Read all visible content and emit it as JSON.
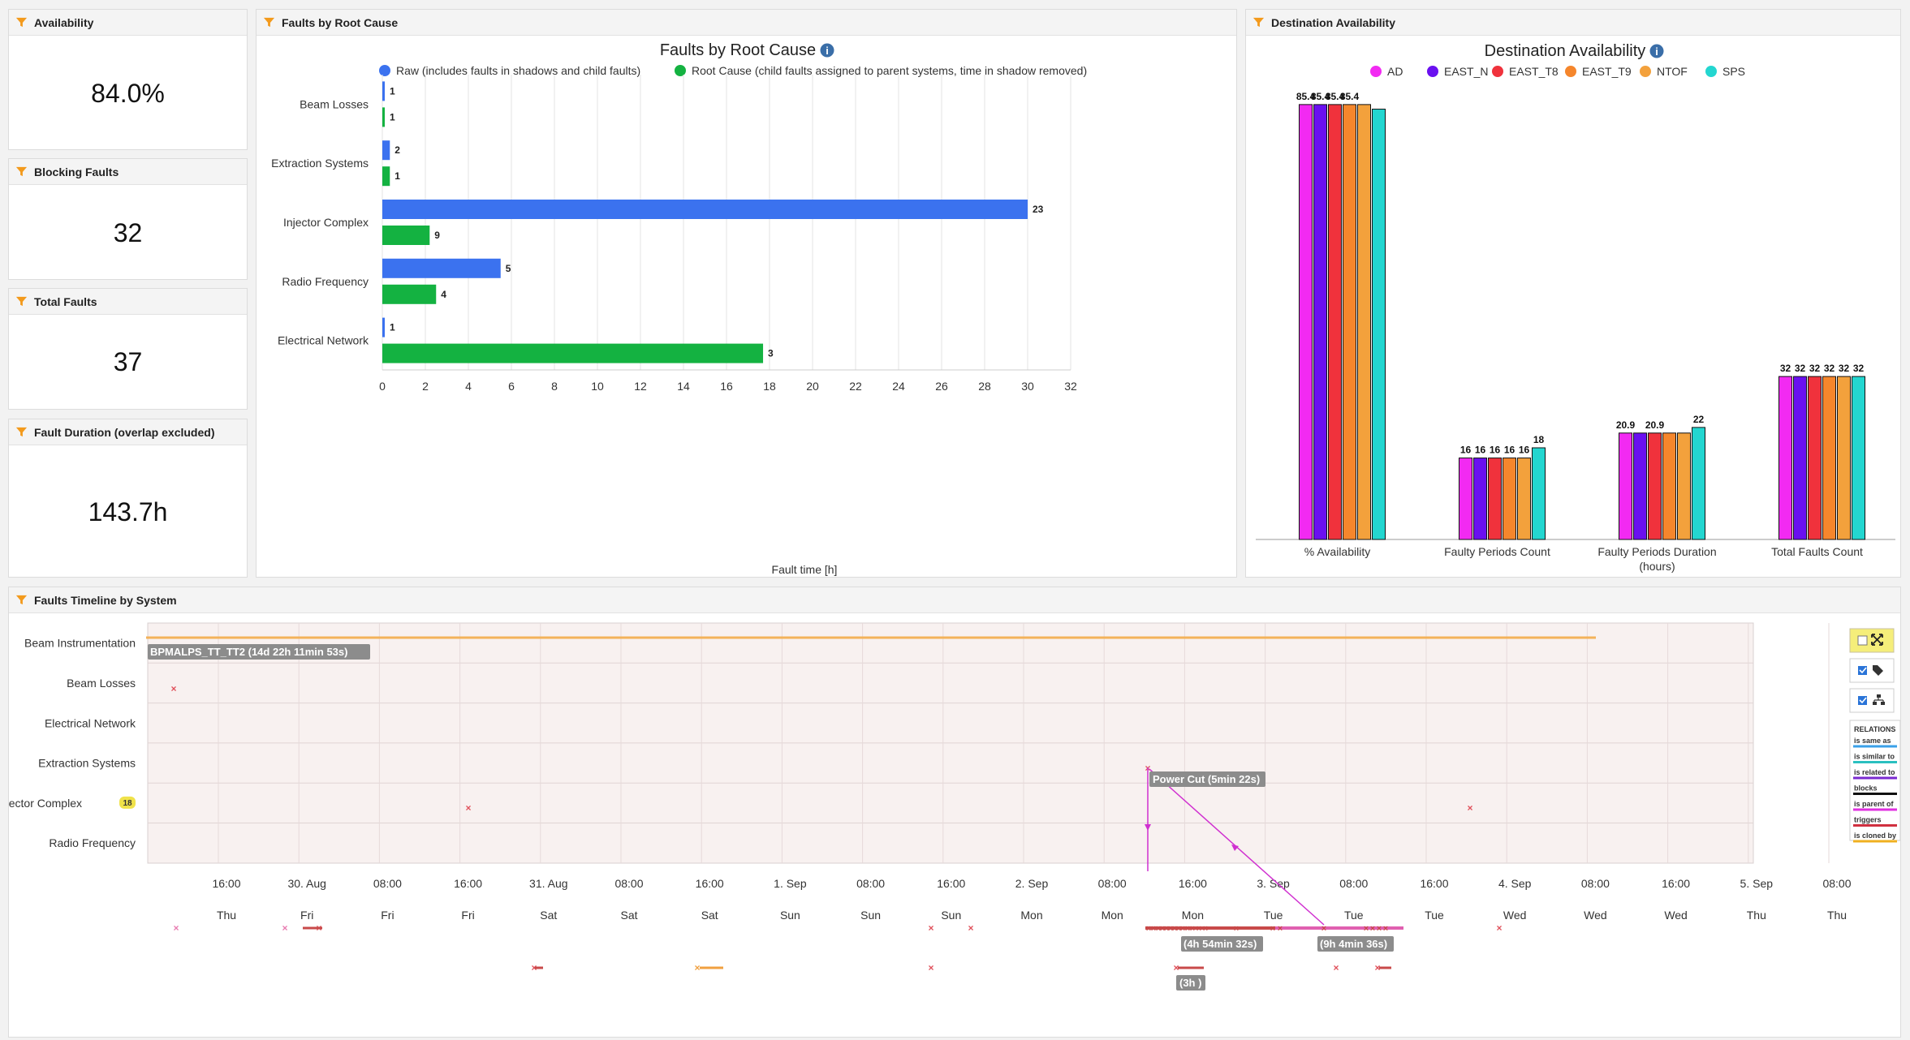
{
  "colors": {
    "blue": "#3b72ef",
    "green": "#14b241",
    "AD": "#f22af2",
    "EAST_N": "#6a10f0",
    "EAST_T8": "#f0323c",
    "EAST_T9": "#f5862c",
    "NTOF": "#f3a13c",
    "SPS": "#23d6d0",
    "filter_icon": "#f39a1c"
  },
  "kpis": [
    {
      "title": "Availability",
      "value": "84.0%"
    },
    {
      "title": "Blocking Faults",
      "value": "32"
    },
    {
      "title": "Total Faults",
      "value": "37"
    },
    {
      "title": "Fault Duration (overlap excluded)",
      "value": "143.7h"
    }
  ],
  "faults_panel": {
    "header": "Faults by Root Cause",
    "title": "Faults by Root Cause",
    "info_icon": "info-icon",
    "legend": [
      {
        "name": "Raw (includes faults in shadows and child faults)",
        "color": "#3b72ef"
      },
      {
        "name": "Root Cause (child faults assigned to parent systems, time in shadow removed)",
        "color": "#14b241"
      }
    ]
  },
  "dest_panel": {
    "header": "Destination Availability",
    "title": "Destination Availability",
    "info_icon": "info-icon"
  },
  "timeline": {
    "header": "Faults Timeline by System",
    "systems": [
      "Beam Instrumentation",
      "Beam Losses",
      "Electrical Network",
      "Extraction Systems",
      "Injector Complex",
      "Radio Frequency"
    ],
    "injector_badge": "18",
    "labels": [
      "BPMALPS_TT_TT2 (14d 22h 11min 53s)",
      "Power Cut (5min 22s)",
      "(4h 54min 32s)",
      "(9h 4min 36s)",
      "(3h )"
    ],
    "time_ticks": [
      "16:00",
      "30. Aug",
      "08:00",
      "16:00",
      "31. Aug",
      "08:00",
      "16:00",
      "1. Sep",
      "08:00",
      "16:00",
      "2. Sep",
      "08:00",
      "16:00",
      "3. Sep",
      "08:00",
      "16:00",
      "4. Sep",
      "08:00",
      "16:00",
      "5. Sep",
      "08:00"
    ],
    "day_ticks": [
      "Thu",
      "Fri",
      "Fri",
      "Fri",
      "Sat",
      "Sat",
      "Sat",
      "Sun",
      "Sun",
      "Sun",
      "Mon",
      "Mon",
      "Mon",
      "Tue",
      "Tue",
      "Tue",
      "Wed",
      "Wed",
      "Wed",
      "Thu",
      "Thu"
    ],
    "controls": [
      "fullscreen-icon",
      "tag-icon",
      "hierarchy-icon"
    ],
    "relations_title": "RELATIONS",
    "relations": [
      {
        "name": "is same as",
        "color": "#3aa0e8"
      },
      {
        "name": "is similar to",
        "color": "#2ac0c0"
      },
      {
        "name": "is related to",
        "color": "#7a2ad0"
      },
      {
        "name": "blocks",
        "color": "#111111"
      },
      {
        "name": "is parent of",
        "color": "#e030e0"
      },
      {
        "name": "triggers",
        "color": "#d03040"
      },
      {
        "name": "is cloned by",
        "color": "#f0b020"
      }
    ]
  },
  "chart_data": [
    {
      "type": "bar",
      "orientation": "horizontal",
      "title": "Faults by Root Cause",
      "categories": [
        "Beam Losses",
        "Extraction Systems",
        "Injector Complex",
        "Radio Frequency",
        "Electrical Network"
      ],
      "series": [
        {
          "name": "Raw (includes faults in shadows and child faults)",
          "values": [
            0.1,
            0.35,
            30,
            5.5,
            0.1
          ],
          "labels": [
            "1",
            "2",
            "23",
            "5",
            "1"
          ]
        },
        {
          "name": "Root Cause (child faults assigned to parent systems, time in shadow removed)",
          "values": [
            0.1,
            0.35,
            2.2,
            2.5,
            17.7
          ],
          "labels": [
            "1",
            "1",
            "9",
            "4",
            "3"
          ]
        }
      ],
      "xlabel": "Fault time [h]",
      "xticks": [
        "0",
        "2",
        "4",
        "6",
        "8",
        "10",
        "12",
        "14",
        "16",
        "18",
        "20",
        "22",
        "24",
        "26",
        "28",
        "30",
        "32"
      ],
      "xlim": [
        0,
        32
      ],
      "grid": true
    },
    {
      "type": "bar",
      "title": "Destination Availability",
      "categories": [
        "% Availability",
        "Faulty Periods Count",
        "Faulty Periods Duration (hours)",
        "Total Faults Count"
      ],
      "series": [
        {
          "name": "AD",
          "values": [
            85.4,
            16,
            20.9,
            32
          ]
        },
        {
          "name": "EAST_N",
          "values": [
            85.4,
            16,
            20.9,
            32
          ]
        },
        {
          "name": "EAST_T8",
          "values": [
            85.4,
            16,
            20.9,
            32
          ]
        },
        {
          "name": "EAST_T9",
          "values": [
            85.4,
            16,
            20.9,
            32
          ]
        },
        {
          "name": "NTOF",
          "values": [
            85.4,
            16,
            20.9,
            32
          ]
        },
        {
          "name": "SPS",
          "values": [
            84.5,
            18,
            22,
            32
          ]
        }
      ],
      "value_labels": [
        [
          "85.4",
          "85.4",
          "85.4",
          "85.4"
        ],
        [
          "16",
          "16",
          "16",
          "16",
          "16",
          "18"
        ],
        [
          "20.9",
          "20.9",
          "22"
        ],
        [
          "32",
          "32",
          "32",
          "32",
          "32",
          "32"
        ]
      ],
      "ylim": [
        0,
        90
      ],
      "legend": "top"
    }
  ]
}
